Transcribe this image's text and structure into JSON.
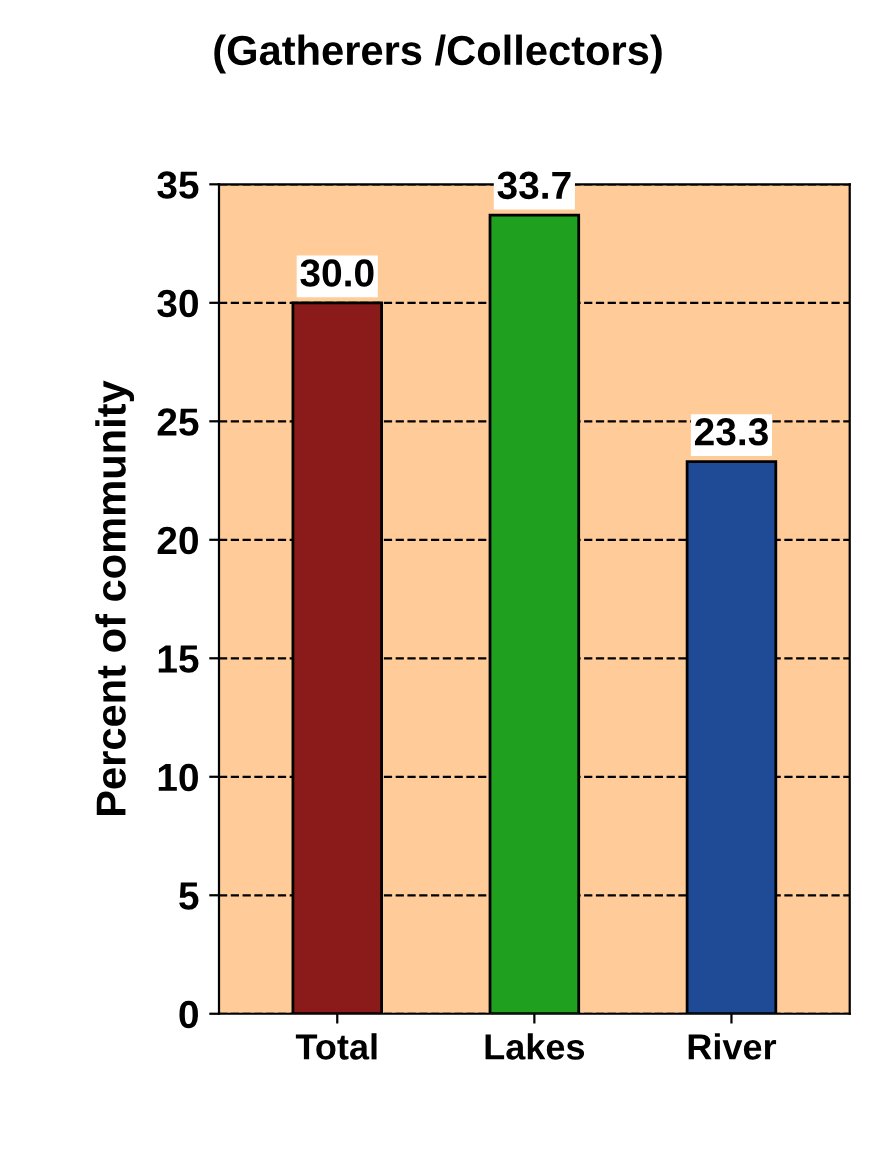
{
  "chart_data": {
    "type": "bar",
    "title": "(Gatherers /Collectors)",
    "ylabel": "Percent of community",
    "categories": [
      "Total",
      "Lakes",
      "River"
    ],
    "values": [
      30.0,
      33.7,
      23.3
    ],
    "colors": [
      "#8b1a1a",
      "#1fa01f",
      "#1f4a96"
    ],
    "value_labels": [
      "30.0",
      "33.7",
      "23.3"
    ],
    "ylim": [
      0,
      35
    ],
    "yticks": [
      0,
      5,
      10,
      15,
      20,
      25,
      30,
      35
    ],
    "grid": "y"
  }
}
